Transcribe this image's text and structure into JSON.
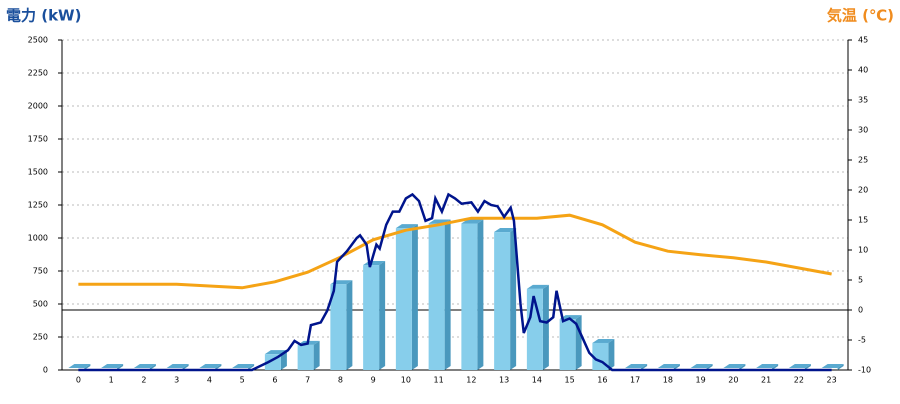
{
  "chart_data": {
    "type": "combo",
    "y_title": "電力 (kW)",
    "y2_title": "気温 (℃)",
    "categories": [
      "0",
      "1",
      "2",
      "3",
      "4",
      "5",
      "6",
      "7",
      "8",
      "9",
      "10",
      "11",
      "12",
      "13",
      "14",
      "15",
      "16",
      "17",
      "18",
      "19",
      "20",
      "21",
      "22",
      "23"
    ],
    "ylim": [
      0,
      2500
    ],
    "yticks": [
      0,
      250,
      500,
      750,
      1000,
      1250,
      1500,
      1750,
      2000,
      2250,
      2500
    ],
    "y2lim": [
      -10,
      45
    ],
    "y2ticks": [
      -10,
      -5,
      0,
      5,
      10,
      15,
      20,
      25,
      30,
      35,
      40,
      45
    ],
    "grid": true,
    "bars": {
      "color": "#87ceeb",
      "values": [
        0,
        0,
        0,
        0,
        0,
        0,
        120,
        190,
        650,
        795,
        1075,
        1110,
        1110,
        1045,
        615,
        385,
        205,
        10,
        0,
        0,
        0,
        0,
        0,
        0
      ]
    },
    "temperature": {
      "color": "#f5a315",
      "axis": "y2",
      "values": [
        4.3,
        4.3,
        4.3,
        4.3,
        4.0,
        3.7,
        4.7,
        6.3,
        8.8,
        11.7,
        13.3,
        14.2,
        15.3,
        15.3,
        15.3,
        15.8,
        14.2,
        11.3,
        9.8,
        9.2,
        8.7,
        8.0,
        7.0,
        6.0
      ]
    },
    "power": {
      "color": "#00148c",
      "x": [
        0,
        5.3,
        5.8,
        6.1,
        6.4,
        6.6,
        6.8,
        7.0,
        7.1,
        7.4,
        7.6,
        7.8,
        7.9,
        8.2,
        8.5,
        8.6,
        8.8,
        8.9,
        9.1,
        9.2,
        9.4,
        9.6,
        9.8,
        10.0,
        10.2,
        10.4,
        10.6,
        10.8,
        10.9,
        11.1,
        11.3,
        11.5,
        11.7,
        12.0,
        12.2,
        12.4,
        12.6,
        12.8,
        13.0,
        13.2,
        13.3,
        13.5,
        13.6,
        13.8,
        13.9,
        14.1,
        14.3,
        14.5,
        14.6,
        14.8,
        15.0,
        15.2,
        15.4,
        15.6,
        15.8,
        16.0,
        16.3,
        23
      ],
      "values": [
        0,
        0,
        60,
        100,
        150,
        220,
        190,
        200,
        340,
        360,
        450,
        600,
        820,
        900,
        1000,
        1020,
        950,
        780,
        950,
        920,
        1100,
        1200,
        1200,
        1300,
        1330,
        1280,
        1130,
        1150,
        1300,
        1200,
        1330,
        1300,
        1260,
        1270,
        1200,
        1280,
        1250,
        1240,
        1160,
        1230,
        1130,
        500,
        280,
        400,
        560,
        370,
        360,
        400,
        600,
        370,
        390,
        350,
        240,
        130,
        80,
        60,
        0,
        0
      ]
    }
  }
}
